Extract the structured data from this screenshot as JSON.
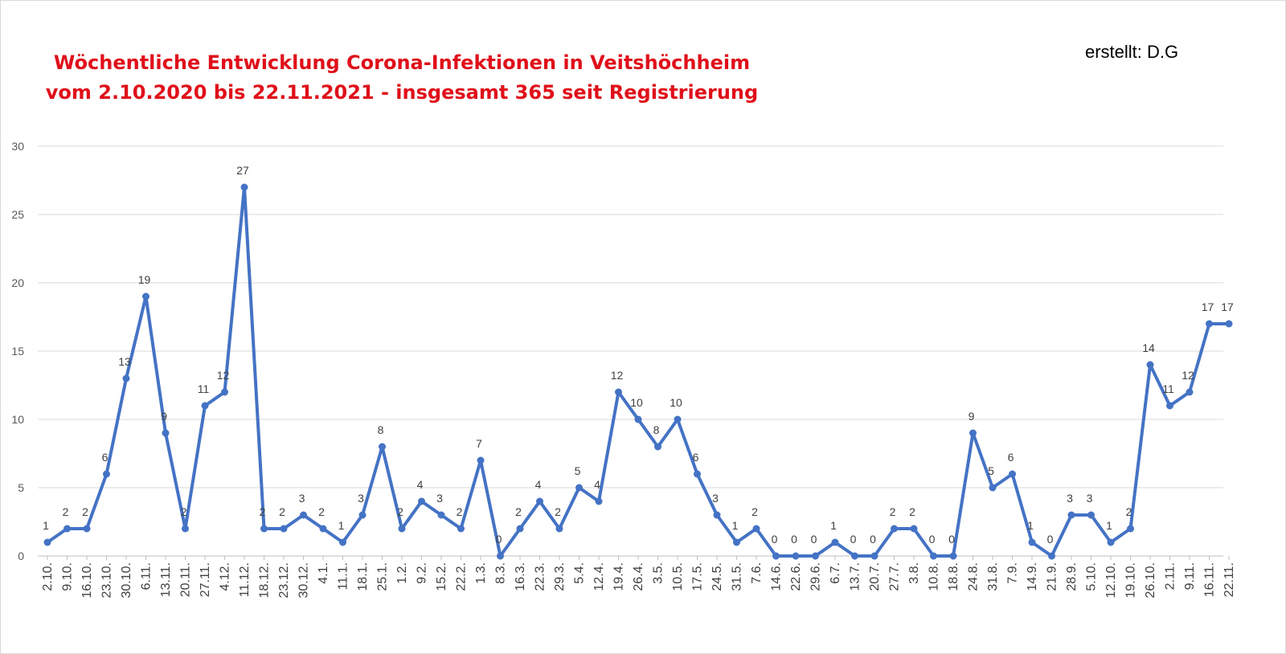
{
  "chart_data": {
    "type": "line",
    "title": "Wöchentliche Entwicklung Corona-Infektionen in Veitshöchheim",
    "subtitle": "vom 2.10.2020 bis 22.11.2021 -  insgesamt 365 seit Registrierung",
    "credit": "erstellt: D.G",
    "xlabel": "",
    "ylabel": "",
    "ylim": [
      0,
      30
    ],
    "yticks": [
      0,
      5,
      10,
      15,
      20,
      25,
      30
    ],
    "grid": true,
    "legend": "none",
    "series_color": "#4472c4",
    "title_color": "#e0101a",
    "categories": [
      "2.10.",
      "9.10.",
      "16.10.",
      "23.10.",
      "30.10.",
      "6.11.",
      "13.11.",
      "20.11.",
      "27.11.",
      "4.12.",
      "11.12.",
      "18.12.",
      "23.12.",
      "30.12.",
      "4.1.",
      "11.1.",
      "18.1.",
      "25.1.",
      "1.2.",
      "9.2.",
      "15.2.",
      "22.2.",
      "1.3.",
      "8.3.",
      "16.3.",
      "22.3.",
      "29.3.",
      "5.4.",
      "12.4.",
      "19.4.",
      "26.4.",
      "3.5.",
      "10.5.",
      "17.5.",
      "24.5.",
      "31.5.",
      "7.6.",
      "14.6.",
      "22.6.",
      "29.6.",
      "6.7.",
      "13.7.",
      "20.7.",
      "27.7.",
      "3.8.",
      "10.8.",
      "18.8.",
      "24.8.",
      "31.8.",
      "7.9.",
      "14.9.",
      "21.9.",
      "28.9.",
      "5.10.",
      "12.10.",
      "19.10.",
      "26.10.",
      "2.11.",
      "9.11.",
      "16.11.",
      "22.11."
    ],
    "values": [
      1,
      2,
      2,
      6,
      13,
      19,
      9,
      2,
      11,
      12,
      27,
      2,
      2,
      3,
      2,
      1,
      3,
      8,
      2,
      4,
      3,
      2,
      7,
      0,
      2,
      4,
      2,
      5,
      4,
      12,
      10,
      8,
      10,
      6,
      3,
      1,
      2,
      0,
      0,
      0,
      1,
      0,
      0,
      2,
      2,
      0,
      0,
      9,
      5,
      6,
      1,
      0,
      3,
      3,
      1,
      2,
      14,
      11,
      12,
      17,
      17
    ]
  }
}
